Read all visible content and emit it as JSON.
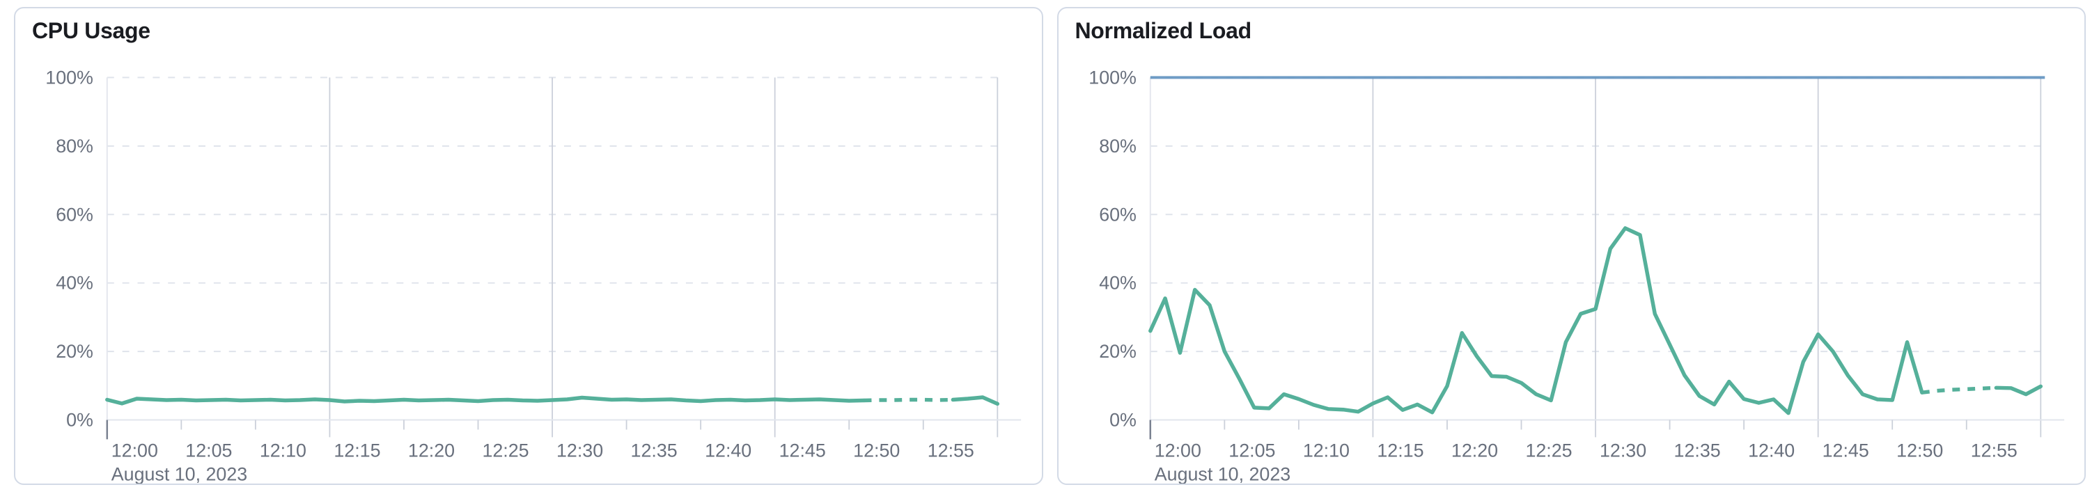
{
  "page": {
    "background": "#ffffff",
    "card_border_color": "#d3dae6"
  },
  "chart_data": [
    {
      "type": "line",
      "name": "cpu-usage-chart",
      "title": "CPU Usage",
      "xlabel": "",
      "ylabel": "",
      "x_date_label": "August 10, 2023",
      "x_tick_labels": [
        "12:00",
        "12:05",
        "12:10",
        "12:15",
        "12:20",
        "12:25",
        "12:30",
        "12:35",
        "12:40",
        "12:45",
        "12:50",
        "12:55"
      ],
      "x_tick_interval_minutes": 5,
      "x_range_minutes": [
        0,
        60
      ],
      "y_tick_labels": [
        "0%",
        "20%",
        "40%",
        "60%",
        "80%",
        "100%"
      ],
      "ylim": [
        0,
        100
      ],
      "grid": {
        "horizontal_dashed_at": [
          20,
          40,
          60,
          80,
          100
        ],
        "vertical_solid_at_minutes": [
          15,
          30,
          45,
          60
        ]
      },
      "legend": "none",
      "series": [
        {
          "name": "cpu-usage",
          "color": "#55B09A",
          "dashed_segment_minutes": [
            51,
            57
          ],
          "values_per_minute": [
            5.9,
            4.8,
            6.2,
            6.0,
            5.8,
            5.9,
            5.7,
            5.8,
            5.9,
            5.7,
            5.8,
            5.9,
            5.7,
            5.8,
            6.0,
            5.8,
            5.4,
            5.6,
            5.5,
            5.7,
            5.9,
            5.7,
            5.8,
            5.9,
            5.7,
            5.5,
            5.8,
            5.9,
            5.7,
            5.6,
            5.8,
            6.0,
            6.5,
            6.2,
            5.9,
            6.0,
            5.8,
            5.9,
            6.0,
            5.7,
            5.5,
            5.8,
            5.9,
            5.7,
            5.8,
            6.0,
            5.8,
            5.9,
            6.0,
            5.8,
            5.6,
            5.7,
            5.8,
            5.8,
            5.9,
            5.9,
            5.8,
            5.9,
            6.2,
            6.6,
            4.7
          ]
        }
      ]
    },
    {
      "type": "line",
      "name": "normalized-load-chart",
      "title": "Normalized Load",
      "xlabel": "",
      "ylabel": "",
      "x_date_label": "August 10, 2023",
      "x_tick_labels": [
        "12:00",
        "12:05",
        "12:10",
        "12:15",
        "12:20",
        "12:25",
        "12:30",
        "12:35",
        "12:40",
        "12:45",
        "12:50",
        "12:55"
      ],
      "x_tick_interval_minutes": 5,
      "x_range_minutes": [
        0,
        60
      ],
      "y_tick_labels": [
        "0%",
        "20%",
        "40%",
        "60%",
        "80%",
        "100%"
      ],
      "ylim": [
        0,
        100
      ],
      "grid": {
        "horizontal_dashed_at": [
          20,
          40,
          60,
          80,
          100
        ],
        "vertical_solid_at_minutes": [
          15,
          30,
          45,
          60
        ]
      },
      "legend": "none",
      "threshold_line": {
        "value": 100,
        "color": "#6092C0"
      },
      "series": [
        {
          "name": "normalized-load",
          "color": "#55B09A",
          "dashed_segment_minutes": [
            52,
            57
          ],
          "values_per_minute": [
            26,
            35.5,
            19.6,
            38,
            33.5,
            20,
            12,
            3.6,
            3.4,
            7.5,
            6.1,
            4.4,
            3.2,
            3.0,
            2.4,
            4.8,
            6.6,
            2.9,
            4.5,
            2.2,
            9.9,
            25.4,
            18.6,
            12.8,
            12.6,
            10.8,
            7.5,
            5.7,
            22.7,
            31,
            32.4,
            50,
            56,
            54,
            31,
            22,
            13,
            7,
            4.5,
            11.2,
            6.1,
            5,
            6,
            2,
            17,
            25,
            20,
            13,
            7.5,
            6,
            5.8,
            22.7,
            8,
            8.5,
            8.8,
            9,
            9.2,
            9.4,
            9.3,
            7.5,
            9.8
          ]
        }
      ]
    }
  ]
}
